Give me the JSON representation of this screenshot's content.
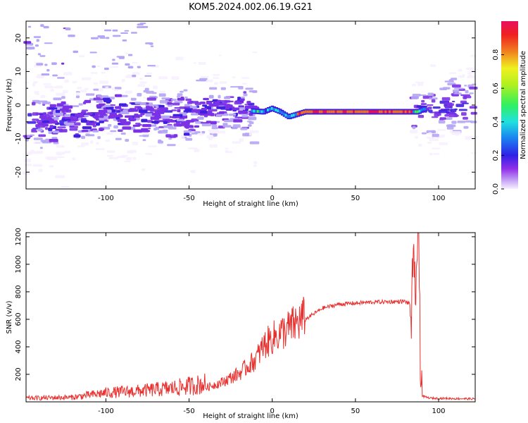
{
  "title": "KOM5.2024.002.06.19.G21",
  "colors": {
    "signal": "#e8302e",
    "spectrum_scale": [
      "#f7f0ff",
      "#b5a5f5",
      "#7b32e6",
      "#3f1fe0",
      "#1a80f0",
      "#20e0e0",
      "#40f040",
      "#f0f020",
      "#f07020",
      "#e81050"
    ]
  },
  "chart_data": [
    {
      "type": "heatmap",
      "xlabel": "Height of straight line (km)",
      "ylabel": "Frequency (Hz)",
      "xlim": [
        -148,
        122
      ],
      "ylim": [
        -25,
        25
      ],
      "xticks": [
        -100,
        -50,
        0,
        50,
        100
      ],
      "yticks": [
        -20,
        -10,
        0,
        10,
        20
      ],
      "colorbar": {
        "label": "Normalized spectral amplitude",
        "range": [
          0.0,
          1.0
        ],
        "ticks": [
          0.0,
          0.2,
          0.4,
          0.6,
          0.8
        ]
      },
      "ridge": {
        "description_points_x": [
          -148,
          -120,
          -100,
          -80,
          -60,
          -40,
          -20,
          -5,
          0,
          5,
          10,
          20,
          50,
          88,
          92,
          122
        ],
        "description_points_y": [
          -5,
          -4,
          -2,
          -3,
          -4,
          -1,
          -1.5,
          -2,
          -1,
          -2,
          -3.5,
          -2,
          -2,
          -2,
          -1,
          0
        ]
      }
    },
    {
      "type": "line",
      "xlabel": "Height of straight line (km)",
      "ylabel": "SNR (v/v)",
      "xlim": [
        -148,
        122
      ],
      "ylim": [
        0,
        1230
      ],
      "xticks": [
        -100,
        -50,
        0,
        50,
        100
      ],
      "yticks": [
        200,
        400,
        600,
        800,
        1000,
        1200
      ],
      "trend_x": [
        -148,
        -120,
        -100,
        -80,
        -60,
        -40,
        -30,
        -20,
        -15,
        -10,
        -5,
        0,
        10,
        20,
        30,
        40,
        60,
        80,
        84,
        86,
        88,
        89,
        90,
        95,
        122
      ],
      "trend_y": [
        20,
        25,
        50,
        60,
        75,
        100,
        140,
        200,
        250,
        300,
        400,
        450,
        520,
        600,
        680,
        710,
        725,
        730,
        700,
        900,
        1200,
        500,
        40,
        25,
        20
      ]
    }
  ]
}
